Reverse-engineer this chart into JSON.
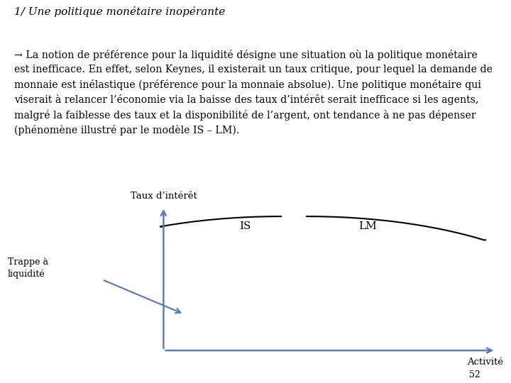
{
  "title": "1/ Une politique monétaire in opérante",
  "yaxis_label": "Taux d’intérêt",
  "xaxis_label": "Activité",
  "IS_label": "IS",
  "LM_label": "LM",
  "trappe_label": "Trappe à\nliquidité",
  "page_number": "52",
  "axis_color": "#5B7DB1",
  "curve_color": "#000000",
  "background_color": "#ffffff",
  "title_fontsize": 11,
  "body_fontsize": 10.2
}
